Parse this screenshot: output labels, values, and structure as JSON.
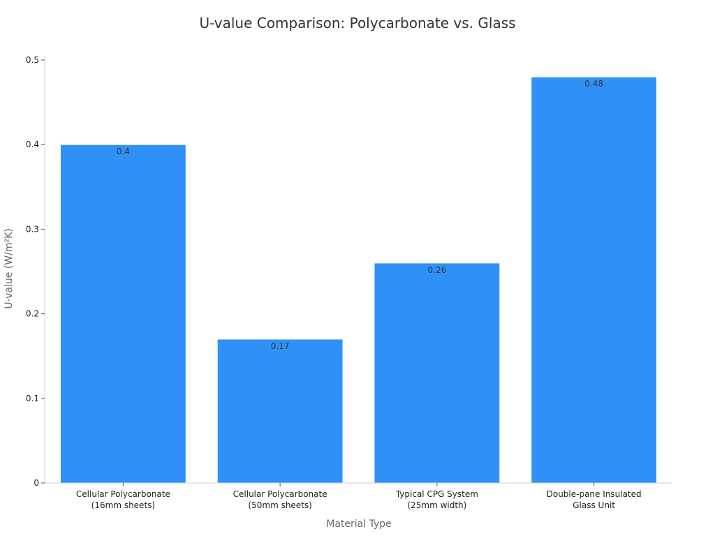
{
  "chart_data": {
    "type": "bar",
    "title": "U-value Comparison: Polycarbonate vs. Glass",
    "xlabel": "Material Type",
    "ylabel": "U-value (W/m²K)",
    "categories": [
      [
        "Cellular Polycarbonate",
        "(16mm sheets)"
      ],
      [
        "Cellular Polycarbonate",
        "(50mm sheets)"
      ],
      [
        "Typical CPG System",
        "(25mm width)"
      ],
      [
        "Double-pane Insulated",
        "Glass Unit"
      ]
    ],
    "values": [
      0.4,
      0.17,
      0.26,
      0.48
    ],
    "data_labels": [
      "0.4",
      "0.17",
      "0.26",
      "0.48"
    ],
    "ylim": [
      0,
      0.5
    ],
    "yticks": [
      0,
      0.1,
      0.2,
      0.3,
      0.4,
      0.5
    ],
    "ytick_labels": [
      "0",
      "0.1",
      "0.2",
      "0.3",
      "0.4",
      "0.5"
    ],
    "grid": false,
    "legend": "none",
    "bar_color": "#2f91f7"
  }
}
